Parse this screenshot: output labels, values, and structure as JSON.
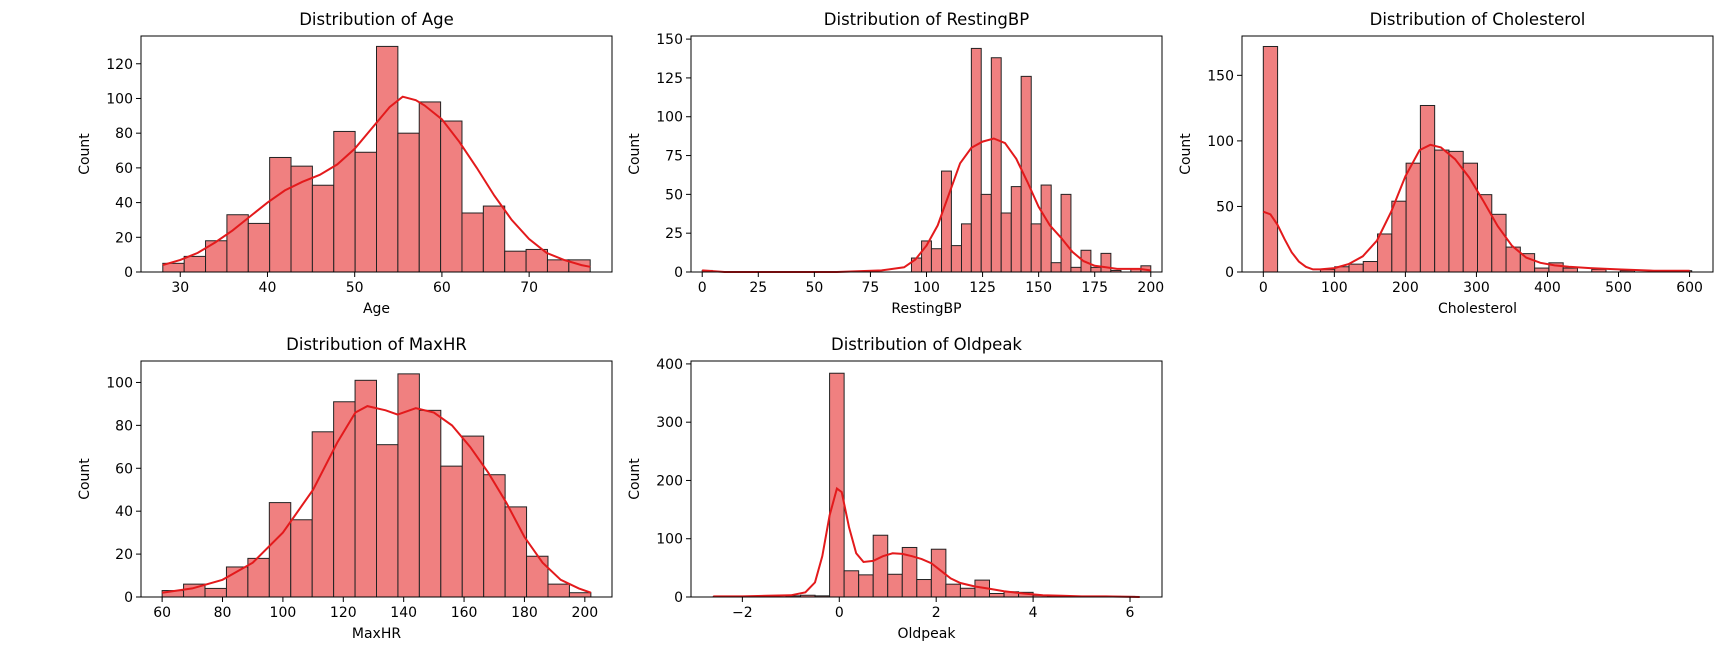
{
  "chart_data": [
    {
      "type": "histogram",
      "title": "Distribution of Age",
      "xlabel": "Age",
      "ylabel": "Count",
      "xlim": [
        25.5,
        79.5
      ],
      "ylim": [
        0,
        136
      ],
      "xticks": [
        30,
        40,
        50,
        60,
        70
      ],
      "yticks": [
        0,
        20,
        40,
        60,
        80,
        100,
        120
      ],
      "bins": [
        {
          "x0": 28,
          "x1": 30.45,
          "count": 5
        },
        {
          "x0": 30.45,
          "x1": 32.9,
          "count": 9
        },
        {
          "x0": 32.9,
          "x1": 35.35,
          "count": 18
        },
        {
          "x0": 35.35,
          "x1": 37.8,
          "count": 33
        },
        {
          "x0": 37.8,
          "x1": 40.25,
          "count": 28
        },
        {
          "x0": 40.25,
          "x1": 42.7,
          "count": 66
        },
        {
          "x0": 42.7,
          "x1": 45.15,
          "count": 61
        },
        {
          "x0": 45.15,
          "x1": 47.6,
          "count": 50
        },
        {
          "x0": 47.6,
          "x1": 50.05,
          "count": 81
        },
        {
          "x0": 50.05,
          "x1": 52.5,
          "count": 69
        },
        {
          "x0": 52.5,
          "x1": 54.95,
          "count": 130
        },
        {
          "x0": 54.95,
          "x1": 57.4,
          "count": 80
        },
        {
          "x0": 57.4,
          "x1": 59.85,
          "count": 98
        },
        {
          "x0": 59.85,
          "x1": 62.3,
          "count": 87
        },
        {
          "x0": 62.3,
          "x1": 64.75,
          "count": 34
        },
        {
          "x0": 64.75,
          "x1": 67.2,
          "count": 38
        },
        {
          "x0": 67.2,
          "x1": 69.65,
          "count": 12
        },
        {
          "x0": 69.65,
          "x1": 72.1,
          "count": 13
        },
        {
          "x0": 72.1,
          "x1": 74.55,
          "count": 7
        },
        {
          "x0": 74.55,
          "x1": 77,
          "count": 7
        }
      ],
      "kde": [
        [
          28,
          4
        ],
        [
          30,
          7
        ],
        [
          32,
          11
        ],
        [
          34,
          17
        ],
        [
          36,
          24
        ],
        [
          38,
          32
        ],
        [
          40,
          40
        ],
        [
          42,
          47
        ],
        [
          44,
          52
        ],
        [
          46,
          56
        ],
        [
          48,
          62
        ],
        [
          50,
          71
        ],
        [
          52,
          83
        ],
        [
          54,
          95
        ],
        [
          55.5,
          101
        ],
        [
          57,
          99
        ],
        [
          58,
          96
        ],
        [
          60,
          88
        ],
        [
          62,
          75
        ],
        [
          64,
          60
        ],
        [
          66,
          44
        ],
        [
          68,
          30
        ],
        [
          70,
          19
        ],
        [
          72,
          11
        ],
        [
          74,
          7
        ],
        [
          76,
          4
        ],
        [
          77,
          3
        ]
      ]
    },
    {
      "type": "histogram",
      "title": "Distribution of RestingBP",
      "xlabel": "RestingBP",
      "ylabel": "Count",
      "xlim": [
        -5,
        205
      ],
      "ylim": [
        0,
        152
      ],
      "xticks": [
        0,
        25,
        50,
        75,
        100,
        125,
        150,
        175,
        200
      ],
      "yticks": [
        0,
        25,
        50,
        75,
        100,
        125,
        150
      ],
      "bins": [
        {
          "x0": 0,
          "x1": 4.44,
          "count": 1
        },
        {
          "x0": 93.3,
          "x1": 97.8,
          "count": 9
        },
        {
          "x0": 97.8,
          "x1": 102.2,
          "count": 20
        },
        {
          "x0": 102.2,
          "x1": 106.7,
          "count": 15
        },
        {
          "x0": 106.7,
          "x1": 111.1,
          "count": 65
        },
        {
          "x0": 111.1,
          "x1": 115.6,
          "count": 17
        },
        {
          "x0": 115.6,
          "x1": 120,
          "count": 31
        },
        {
          "x0": 120,
          "x1": 124.4,
          "count": 144
        },
        {
          "x0": 124.4,
          "x1": 128.9,
          "count": 50
        },
        {
          "x0": 128.9,
          "x1": 133.3,
          "count": 138
        },
        {
          "x0": 133.3,
          "x1": 137.8,
          "count": 38
        },
        {
          "x0": 137.8,
          "x1": 142.2,
          "count": 55
        },
        {
          "x0": 142.2,
          "x1": 146.7,
          "count": 126
        },
        {
          "x0": 146.7,
          "x1": 151.1,
          "count": 31
        },
        {
          "x0": 151.1,
          "x1": 155.6,
          "count": 56
        },
        {
          "x0": 155.6,
          "x1": 160,
          "count": 6
        },
        {
          "x0": 160,
          "x1": 164.4,
          "count": 50
        },
        {
          "x0": 164.4,
          "x1": 168.9,
          "count": 3
        },
        {
          "x0": 168.9,
          "x1": 173.3,
          "count": 14
        },
        {
          "x0": 173.3,
          "x1": 177.8,
          "count": 3
        },
        {
          "x0": 177.8,
          "x1": 182.2,
          "count": 12
        },
        {
          "x0": 182.2,
          "x1": 186.7,
          "count": 1
        },
        {
          "x0": 191.1,
          "x1": 195.6,
          "count": 2
        },
        {
          "x0": 195.6,
          "x1": 200,
          "count": 4
        }
      ],
      "kde": [
        [
          0,
          1
        ],
        [
          10,
          0
        ],
        [
          60,
          0
        ],
        [
          80,
          1
        ],
        [
          90,
          3
        ],
        [
          95,
          8
        ],
        [
          100,
          17
        ],
        [
          105,
          30
        ],
        [
          110,
          50
        ],
        [
          115,
          70
        ],
        [
          120,
          80
        ],
        [
          125,
          84
        ],
        [
          130,
          86
        ],
        [
          135,
          83
        ],
        [
          140,
          73
        ],
        [
          145,
          58
        ],
        [
          150,
          42
        ],
        [
          155,
          30
        ],
        [
          160,
          22
        ],
        [
          165,
          13
        ],
        [
          170,
          7
        ],
        [
          175,
          4
        ],
        [
          180,
          3
        ],
        [
          185,
          2
        ],
        [
          190,
          2
        ],
        [
          195,
          2
        ],
        [
          200,
          1
        ]
      ]
    },
    {
      "type": "histogram",
      "title": "Distribution of Cholesterol",
      "xlabel": "Cholesterol",
      "ylabel": "Count",
      "xlim": [
        -30,
        633
      ],
      "ylim": [
        0,
        180
      ],
      "xticks": [
        0,
        100,
        200,
        300,
        400,
        500,
        600
      ],
      "yticks": [
        0,
        50,
        100,
        150
      ],
      "bins": [
        {
          "x0": 0,
          "x1": 20.1,
          "count": 172
        },
        {
          "x0": 80.4,
          "x1": 100.5,
          "count": 2
        },
        {
          "x0": 100.5,
          "x1": 120.6,
          "count": 4
        },
        {
          "x0": 120.6,
          "x1": 140.7,
          "count": 6
        },
        {
          "x0": 140.7,
          "x1": 160.8,
          "count": 8
        },
        {
          "x0": 160.8,
          "x1": 180.9,
          "count": 29
        },
        {
          "x0": 180.9,
          "x1": 201,
          "count": 54
        },
        {
          "x0": 201,
          "x1": 221.1,
          "count": 83
        },
        {
          "x0": 221.1,
          "x1": 241.2,
          "count": 127
        },
        {
          "x0": 241.2,
          "x1": 261.3,
          "count": 93
        },
        {
          "x0": 261.3,
          "x1": 281.4,
          "count": 92
        },
        {
          "x0": 281.4,
          "x1": 301.5,
          "count": 83
        },
        {
          "x0": 301.5,
          "x1": 321.6,
          "count": 59
        },
        {
          "x0": 321.6,
          "x1": 341.7,
          "count": 44
        },
        {
          "x0": 341.7,
          "x1": 361.8,
          "count": 19
        },
        {
          "x0": 361.8,
          "x1": 381.9,
          "count": 14
        },
        {
          "x0": 381.9,
          "x1": 402,
          "count": 3
        },
        {
          "x0": 402,
          "x1": 422.1,
          "count": 7
        },
        {
          "x0": 422.1,
          "x1": 442.2,
          "count": 3
        },
        {
          "x0": 462.3,
          "x1": 482.4,
          "count": 2
        },
        {
          "x0": 502.5,
          "x1": 522.6,
          "count": 1
        },
        {
          "x0": 582.9,
          "x1": 603,
          "count": 1
        }
      ],
      "kde": [
        [
          0,
          46
        ],
        [
          10,
          44
        ],
        [
          20,
          36
        ],
        [
          30,
          25
        ],
        [
          40,
          15
        ],
        [
          50,
          8
        ],
        [
          60,
          4
        ],
        [
          70,
          2
        ],
        [
          80,
          2
        ],
        [
          100,
          3
        ],
        [
          120,
          6
        ],
        [
          140,
          12
        ],
        [
          160,
          24
        ],
        [
          180,
          46
        ],
        [
          200,
          73
        ],
        [
          220,
          93
        ],
        [
          235,
          97
        ],
        [
          250,
          95
        ],
        [
          270,
          86
        ],
        [
          290,
          72
        ],
        [
          310,
          54
        ],
        [
          330,
          35
        ],
        [
          350,
          20
        ],
        [
          370,
          11
        ],
        [
          390,
          7
        ],
        [
          410,
          5
        ],
        [
          430,
          4
        ],
        [
          460,
          3
        ],
        [
          500,
          2
        ],
        [
          550,
          1
        ],
        [
          600,
          1
        ]
      ]
    },
    {
      "type": "histogram",
      "title": "Distribution of MaxHR",
      "xlabel": "MaxHR",
      "ylabel": "Count",
      "xlim": [
        53,
        209
      ],
      "ylim": [
        0,
        110
      ],
      "xticks": [
        60,
        80,
        100,
        120,
        140,
        160,
        180,
        200
      ],
      "yticks": [
        0,
        20,
        40,
        60,
        80,
        100
      ],
      "bins": [
        {
          "x0": 60,
          "x1": 67.1,
          "count": 3
        },
        {
          "x0": 67.1,
          "x1": 74.2,
          "count": 6
        },
        {
          "x0": 74.2,
          "x1": 81.3,
          "count": 4
        },
        {
          "x0": 81.3,
          "x1": 88.4,
          "count": 14
        },
        {
          "x0": 88.4,
          "x1": 95.5,
          "count": 18
        },
        {
          "x0": 95.5,
          "x1": 102.6,
          "count": 44
        },
        {
          "x0": 102.6,
          "x1": 109.7,
          "count": 36
        },
        {
          "x0": 109.7,
          "x1": 116.8,
          "count": 77
        },
        {
          "x0": 116.8,
          "x1": 123.9,
          "count": 91
        },
        {
          "x0": 123.9,
          "x1": 131,
          "count": 101
        },
        {
          "x0": 131,
          "x1": 138.1,
          "count": 71
        },
        {
          "x0": 138.1,
          "x1": 145.2,
          "count": 104
        },
        {
          "x0": 145.2,
          "x1": 152.3,
          "count": 87
        },
        {
          "x0": 152.3,
          "x1": 159.4,
          "count": 61
        },
        {
          "x0": 159.4,
          "x1": 166.5,
          "count": 75
        },
        {
          "x0": 166.5,
          "x1": 173.6,
          "count": 57
        },
        {
          "x0": 173.6,
          "x1": 180.7,
          "count": 42
        },
        {
          "x0": 180.7,
          "x1": 187.8,
          "count": 19
        },
        {
          "x0": 187.8,
          "x1": 194.9,
          "count": 6
        },
        {
          "x0": 194.9,
          "x1": 202,
          "count": 2
        }
      ],
      "kde": [
        [
          60,
          2
        ],
        [
          70,
          4
        ],
        [
          80,
          8
        ],
        [
          90,
          16
        ],
        [
          100,
          30
        ],
        [
          110,
          50
        ],
        [
          118,
          72
        ],
        [
          124,
          86
        ],
        [
          128,
          89
        ],
        [
          134,
          87
        ],
        [
          138,
          85
        ],
        [
          144,
          88
        ],
        [
          150,
          86
        ],
        [
          156,
          80
        ],
        [
          162,
          70
        ],
        [
          168,
          58
        ],
        [
          174,
          44
        ],
        [
          180,
          28
        ],
        [
          186,
          16
        ],
        [
          192,
          8
        ],
        [
          198,
          4
        ],
        [
          202,
          2
        ]
      ]
    },
    {
      "type": "histogram",
      "title": "Distribution of Oldpeak",
      "xlabel": "Oldpeak",
      "ylabel": "Count",
      "xlim": [
        -3.06,
        6.66
      ],
      "ylim": [
        0,
        405
      ],
      "xticks": [
        -2,
        0,
        2,
        4,
        6
      ],
      "yticks": [
        0,
        100,
        200,
        300,
        400
      ],
      "bins": [
        {
          "x0": -2.6,
          "x1": -2.3,
          "count": 1
        },
        {
          "x0": -1.1,
          "x1": -0.8,
          "count": 2
        },
        {
          "x0": -0.8,
          "x1": -0.5,
          "count": 3
        },
        {
          "x0": -0.5,
          "x1": -0.2,
          "count": 2
        },
        {
          "x0": -0.2,
          "x1": 0.1,
          "count": 384
        },
        {
          "x0": 0.1,
          "x1": 0.4,
          "count": 45
        },
        {
          "x0": 0.4,
          "x1": 0.7,
          "count": 38
        },
        {
          "x0": 0.7,
          "x1": 1.0,
          "count": 106
        },
        {
          "x0": 1.0,
          "x1": 1.3,
          "count": 39
        },
        {
          "x0": 1.3,
          "x1": 1.6,
          "count": 85
        },
        {
          "x0": 1.6,
          "x1": 1.9,
          "count": 30
        },
        {
          "x0": 1.9,
          "x1": 2.2,
          "count": 82
        },
        {
          "x0": 2.2,
          "x1": 2.5,
          "count": 22
        },
        {
          "x0": 2.5,
          "x1": 2.8,
          "count": 15
        },
        {
          "x0": 2.8,
          "x1": 3.1,
          "count": 29
        },
        {
          "x0": 3.1,
          "x1": 3.4,
          "count": 6
        },
        {
          "x0": 3.4,
          "x1": 3.7,
          "count": 9
        },
        {
          "x0": 3.7,
          "x1": 4.0,
          "count": 8
        },
        {
          "x0": 4.0,
          "x1": 4.3,
          "count": 3
        },
        {
          "x0": 4.3,
          "x1": 4.6,
          "count": 1
        },
        {
          "x0": 5.5,
          "x1": 5.8,
          "count": 1
        },
        {
          "x0": 5.8,
          "x1": 6.1,
          "count": 1
        }
      ],
      "kde": [
        [
          -2.6,
          1
        ],
        [
          -2,
          1
        ],
        [
          -1.5,
          2
        ],
        [
          -1,
          3
        ],
        [
          -0.7,
          8
        ],
        [
          -0.5,
          25
        ],
        [
          -0.35,
          70
        ],
        [
          -0.2,
          140
        ],
        [
          -0.05,
          186
        ],
        [
          0.05,
          180
        ],
        [
          0.2,
          120
        ],
        [
          0.35,
          75
        ],
        [
          0.5,
          60
        ],
        [
          0.7,
          62
        ],
        [
          0.9,
          70
        ],
        [
          1.1,
          75
        ],
        [
          1.3,
          74
        ],
        [
          1.5,
          70
        ],
        [
          1.7,
          65
        ],
        [
          1.9,
          58
        ],
        [
          2.1,
          45
        ],
        [
          2.3,
          32
        ],
        [
          2.5,
          24
        ],
        [
          2.8,
          18
        ],
        [
          3.1,
          14
        ],
        [
          3.4,
          10
        ],
        [
          3.8,
          6
        ],
        [
          4.2,
          3
        ],
        [
          4.6,
          2
        ],
        [
          5,
          1
        ],
        [
          5.5,
          1
        ],
        [
          6.2,
          0
        ]
      ]
    }
  ]
}
